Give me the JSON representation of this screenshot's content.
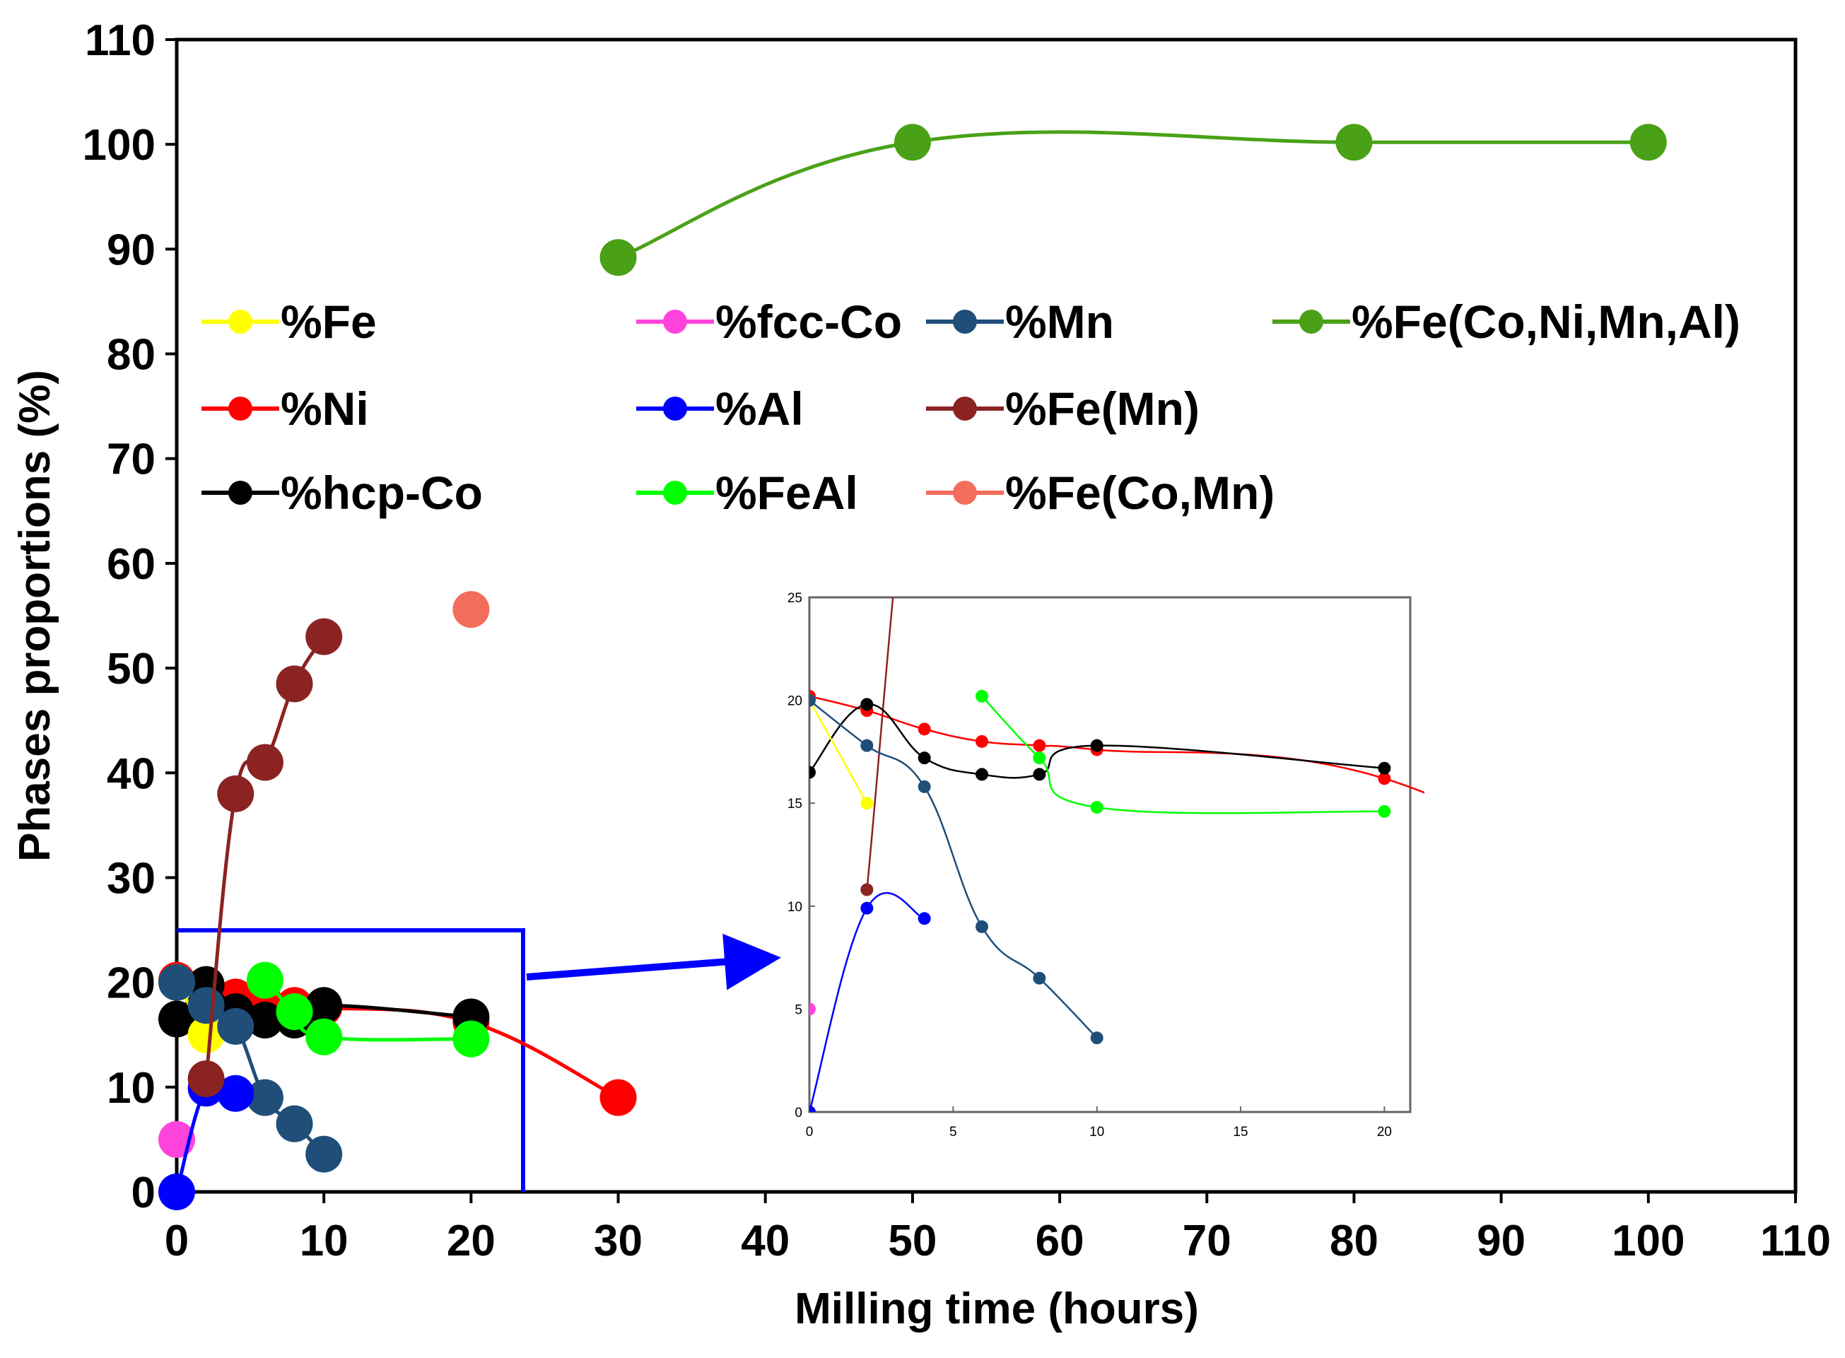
{
  "chart_data": {
    "type": "line",
    "xlabel": "Milling time (hours)",
    "ylabel": "Phases proportions (%)",
    "xlim": [
      0,
      110
    ],
    "ylim": [
      0,
      110
    ],
    "x_ticks": [
      0,
      10,
      20,
      30,
      40,
      50,
      60,
      70,
      80,
      90,
      100,
      110
    ],
    "y_ticks": [
      0,
      10,
      20,
      30,
      40,
      50,
      60,
      70,
      80,
      90,
      100,
      110
    ],
    "series": [
      {
        "name": "%Fe",
        "color": "#ffff00",
        "x": [
          0,
          2
        ],
        "y": [
          20,
          15
        ]
      },
      {
        "name": "%Ni",
        "color": "#ff0000",
        "x": [
          0,
          2,
          4,
          6,
          8,
          10,
          20,
          30
        ],
        "y": [
          20.2,
          19.5,
          18.6,
          18,
          17.8,
          17.6,
          16.2,
          9
        ]
      },
      {
        "name": "%hcp-Co",
        "color": "#000000",
        "x": [
          0,
          2,
          4,
          6,
          8,
          10,
          20
        ],
        "y": [
          16.5,
          19.8,
          17.2,
          16.4,
          16.4,
          17.8,
          16.7
        ]
      },
      {
        "name": "%fcc-Co",
        "color": "#ff44dd",
        "x": [
          0
        ],
        "y": [
          5
        ]
      },
      {
        "name": "%Al",
        "color": "#0000ff",
        "x": [
          0,
          2,
          4
        ],
        "y": [
          0,
          9.9,
          9.4
        ]
      },
      {
        "name": "%FeAl",
        "color": "#00ff00",
        "x": [
          6,
          8,
          10,
          20
        ],
        "y": [
          20.2,
          17.2,
          14.8,
          14.6
        ]
      },
      {
        "name": "%Mn",
        "color": "#1f4e79",
        "x": [
          0,
          2,
          4,
          6,
          8,
          10
        ],
        "y": [
          20,
          17.8,
          15.8,
          9,
          6.5,
          3.6
        ]
      },
      {
        "name": "%Fe(Mn)",
        "color": "#8b2323",
        "x": [
          2,
          4,
          6,
          8,
          10
        ],
        "y": [
          10.8,
          38,
          41,
          48.5,
          53
        ]
      },
      {
        "name": "%Fe(Co,Mn)",
        "color": "#f26d5b",
        "x": [
          20
        ],
        "y": [
          55.6
        ]
      },
      {
        "name": "%Fe(Co,Ni,Mn,Al)",
        "color": "#4aa117",
        "x": [
          30,
          50,
          80,
          100
        ],
        "y": [
          89.2,
          100.2,
          100.2,
          100.2
        ]
      }
    ],
    "legend_columns": [
      [
        "%Fe",
        "%Ni",
        "%hcp-Co"
      ],
      [
        "%fcc-Co",
        "%Al",
        "%FeAl"
      ],
      [
        "%Mn",
        "%Fe(Mn)",
        "%Fe(Co,Mn)"
      ],
      [
        "%Fe(Co,Ni,Mn,Al)"
      ]
    ],
    "inset": {
      "xlim": [
        0,
        20
      ],
      "ylim": [
        0,
        25
      ],
      "x_ticks": [
        0,
        5,
        10,
        15,
        20
      ],
      "y_ticks": [
        0,
        5,
        10,
        15,
        20,
        25
      ],
      "zoom_region": {
        "x": [
          0,
          23.5
        ],
        "y": [
          0,
          25
        ]
      }
    },
    "colors": {
      "zoom_box": "#0000ff",
      "arrow": "#0000ff",
      "axis": "#000000"
    }
  }
}
